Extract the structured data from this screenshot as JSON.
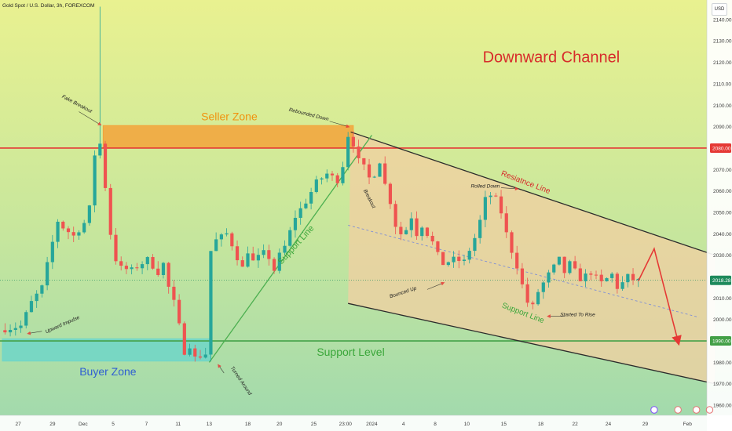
{
  "chart_data": {
    "type": "candlestick",
    "title": "Gold Spot / U.S. Dollar, 3h, FOREXCOM",
    "currency_button": "USD",
    "y_axis": {
      "ticks": [
        "2140.00",
        "2130.00",
        "2120.00",
        "2110.00",
        "2100.00",
        "2090.00",
        "2070.00",
        "2060.00",
        "2050.00",
        "2040.00",
        "2030.00",
        "2010.00",
        "2000.00",
        "1980.00",
        "1970.00",
        "1960.00"
      ],
      "values": [
        2140,
        2130,
        2120,
        2110,
        2100,
        2090,
        2070,
        2060,
        2050,
        2040,
        2030,
        2010,
        2000,
        1980,
        1970,
        1960
      ],
      "ylim": [
        1956,
        2148
      ]
    },
    "x_axis": {
      "ticks": [
        {
          "label": "27",
          "v": 3
        },
        {
          "label": "29",
          "v": 9.5
        },
        {
          "label": "Dec",
          "v": 15.3
        },
        {
          "label": "5",
          "v": 21
        },
        {
          "label": "7",
          "v": 27.3
        },
        {
          "label": "11",
          "v": 33.3
        },
        {
          "label": "13",
          "v": 39.2
        },
        {
          "label": "18",
          "v": 46.5
        },
        {
          "label": "20",
          "v": 52.5
        },
        {
          "label": "25",
          "v": 59
        },
        {
          "label": "23:00",
          "v": 65
        },
        {
          "label": "2024",
          "v": 70
        },
        {
          "label": "4",
          "v": 76
        },
        {
          "label": "8",
          "v": 82
        },
        {
          "label": "10",
          "v": 88
        },
        {
          "label": "15",
          "v": 95
        },
        {
          "label": "18",
          "v": 102
        },
        {
          "label": "22",
          "v": 108.5
        },
        {
          "label": "24",
          "v": 114.8
        },
        {
          "label": "29",
          "v": 121.8
        },
        {
          "label": "Feb",
          "v": 129.8
        }
      ],
      "xlim": [
        0,
        134
      ]
    },
    "price_labels": [
      {
        "value": 2080,
        "text": "2080.00",
        "color": "#e53935"
      },
      {
        "value": 2018.28,
        "text": "2018.28",
        "color": "#1e8a5c"
      },
      {
        "value": 1990,
        "text": "1990.00",
        "color": "#43a047"
      }
    ],
    "current_price": 2018.28,
    "levels": {
      "resistance": 2080,
      "support": 1990
    },
    "zones": [
      {
        "name": "Seller Zone",
        "x0": 19.1,
        "x1": 66.5,
        "y0": 2080,
        "y1": 2090.5,
        "fill": "#f3a33a",
        "label_color": "#f0930f"
      },
      {
        "name": "Buyer Zone",
        "x0": 0,
        "x1": 39.5,
        "y0": 1980.6,
        "y1": 1991,
        "fill": "#6fd6c8",
        "label_color": "#2f5fd2"
      }
    ],
    "channel": {
      "name": "Downward Channel",
      "upper": [
        [
          66,
          2087.5
        ],
        [
          135,
          2030
        ]
      ],
      "lower": [
        [
          65.5,
          2007.5
        ],
        [
          135,
          1970
        ]
      ],
      "middle": [
        [
          65.5,
          2044
        ],
        [
          132,
          2001
        ]
      ],
      "fill": "#f2cfa1"
    },
    "support_line": {
      "from": [
        39.2,
        1980
      ],
      "to": [
        70,
        2086
      ]
    },
    "projection": [
      [
        120.5,
        2018
      ],
      [
        123.5,
        2033
      ],
      [
        128,
        1990
      ]
    ],
    "annotations": [
      {
        "text": "Downward Channel",
        "x": 104,
        "y": 2120,
        "size": 20,
        "color": "#d72b2b",
        "anchor": "middle"
      },
      {
        "text": "Seller Zone",
        "x": 43,
        "y": 2093,
        "size": 14,
        "color": "#f0930f",
        "anchor": "middle"
      },
      {
        "text": "Buyer Zone",
        "x": 20,
        "y": 1974,
        "size": 14,
        "color": "#2f5fd2",
        "anchor": "middle"
      },
      {
        "text": "Support Level",
        "x": 66,
        "y": 1983,
        "size": 14,
        "color": "#3aa63a",
        "anchor": "middle"
      },
      {
        "text": "Support Line",
        "x": 56,
        "y": 2034,
        "size": 11,
        "color": "#3aa63a",
        "anchor": "middle",
        "rotate": -48
      },
      {
        "text": "Resiatnce Line",
        "x": 99,
        "y": 2063,
        "size": 10,
        "color": "#d72b2b",
        "anchor": "middle",
        "rotate": 21
      },
      {
        "text": "Support Line",
        "x": 98.5,
        "y": 2002,
        "size": 10,
        "color": "#3aa63a",
        "anchor": "middle",
        "rotate": 21
      },
      {
        "text": "Fake Breakout",
        "x": 14,
        "y": 2100,
        "size": 6.5,
        "color": "#222",
        "anchor": "middle",
        "rotate": 28
      },
      {
        "text": "Rebounded Down",
        "x": 58,
        "y": 2095,
        "size": 6.5,
        "color": "#222",
        "anchor": "middle",
        "rotate": 14
      },
      {
        "text": "Breakout",
        "x": 69.3,
        "y": 2056,
        "size": 6.5,
        "color": "#222",
        "anchor": "middle",
        "rotate": 63
      },
      {
        "text": "Rolled Down",
        "x": 91.5,
        "y": 2061.5,
        "size": 6.5,
        "color": "#222",
        "anchor": "middle"
      },
      {
        "text": "Bounced Up",
        "x": 76,
        "y": 2012,
        "size": 6.5,
        "color": "#222",
        "anchor": "middle",
        "rotate": -18
      },
      {
        "text": "Started To Rise",
        "x": 109,
        "y": 2001.5,
        "size": 6.5,
        "color": "#222",
        "anchor": "middle"
      },
      {
        "text": "Upward Impulse",
        "x": 11.5,
        "y": 1997,
        "size": 6.5,
        "color": "#222",
        "anchor": "middle",
        "rotate": -24
      },
      {
        "text": "Turned Around",
        "x": 45,
        "y": 1971,
        "size": 6.5,
        "color": "#222",
        "anchor": "middle",
        "rotate": 56
      }
    ],
    "colors": {
      "background_top": "#e8f08f",
      "background_bottom": "#9fd9ae",
      "bull": "#26a69a",
      "bear": "#ef5350",
      "resistance": "#e53935",
      "support": "#43a047",
      "channel_line": "#2b2b2b",
      "support_line": "#4caf50",
      "projection": "#e53935",
      "midline": "#7f8fd6"
    },
    "spike": {
      "index": 18,
      "value": 2146
    }
  }
}
